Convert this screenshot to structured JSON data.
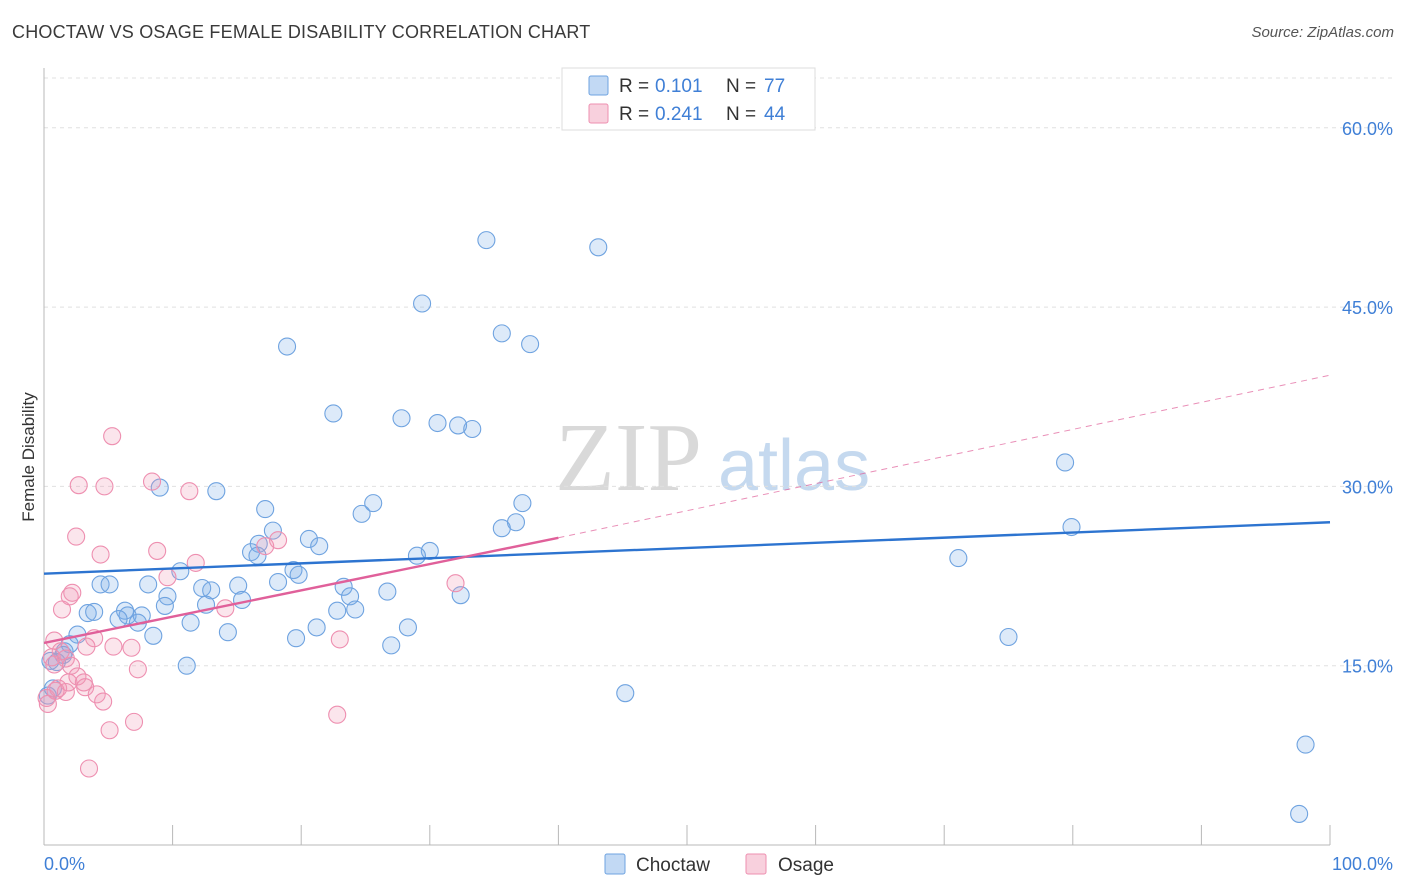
{
  "title": "CHOCTAW VS OSAGE FEMALE DISABILITY CORRELATION CHART",
  "source": "Source: ZipAtlas.com",
  "watermark": {
    "zip": "ZIP",
    "atlas": "atlas"
  },
  "colors": {
    "choctaw": "#6fa3e0",
    "choctaw_fill": "rgba(120,170,230,0.25)",
    "choctaw_line": "#2d74d0",
    "osage": "#ee8fb0",
    "osage_fill": "rgba(240,150,180,0.25)",
    "osage_line": "#e0609a",
    "tick_text": "#3f7fd6",
    "grid": "#e0e0e0"
  },
  "legend": {
    "rows": [
      {
        "series": "choctaw",
        "r_label": "R = ",
        "r_value": "0.101",
        "n_label": "N = ",
        "n_value": "77"
      },
      {
        "series": "osage",
        "r_label": "R = ",
        "r_value": "0.241",
        "n_label": "N = ",
        "n_value": "44"
      }
    ]
  },
  "chart_data": {
    "type": "scatter",
    "title": "CHOCTAW VS OSAGE FEMALE DISABILITY CORRELATION CHART",
    "xlabel": "",
    "ylabel": "Female Disability",
    "xlim": [
      0,
      100
    ],
    "ylim": [
      0,
      65
    ],
    "x_tick_labels": [
      "0.0%",
      "100.0%"
    ],
    "y_ticks": [
      15,
      30,
      45,
      60
    ],
    "y_tick_labels": [
      "15.0%",
      "30.0%",
      "45.0%",
      "60.0%"
    ],
    "grid": true,
    "series": [
      {
        "name": "Choctaw",
        "r": 0.101,
        "n": 77,
        "trend": {
          "x": [
            0,
            100
          ],
          "y": [
            22.7,
            27.0
          ],
          "style": "solid"
        },
        "points": [
          [
            34.4,
            50.6
          ],
          [
            43.1,
            50.0
          ],
          [
            29.4,
            45.3
          ],
          [
            35.6,
            42.8
          ],
          [
            37.8,
            41.9
          ],
          [
            18.9,
            41.7
          ],
          [
            22.5,
            36.1
          ],
          [
            27.8,
            35.7
          ],
          [
            30.6,
            35.3
          ],
          [
            32.2,
            35.1
          ],
          [
            33.3,
            34.8
          ],
          [
            79.4,
            32.0
          ],
          [
            9.0,
            29.9
          ],
          [
            13.4,
            29.6
          ],
          [
            25.6,
            28.6
          ],
          [
            37.2,
            28.6
          ],
          [
            17.2,
            28.1
          ],
          [
            24.7,
            27.7
          ],
          [
            36.7,
            27.0
          ],
          [
            35.6,
            26.5
          ],
          [
            79.9,
            26.6
          ],
          [
            17.8,
            26.3
          ],
          [
            20.6,
            25.6
          ],
          [
            16.7,
            25.2
          ],
          [
            21.4,
            25.0
          ],
          [
            16.1,
            24.5
          ],
          [
            16.6,
            24.2
          ],
          [
            30.0,
            24.6
          ],
          [
            29.0,
            24.2
          ],
          [
            71.1,
            24.0
          ],
          [
            10.6,
            22.9
          ],
          [
            19.4,
            23.0
          ],
          [
            19.8,
            22.6
          ],
          [
            4.4,
            21.8
          ],
          [
            5.1,
            21.8
          ],
          [
            8.1,
            21.8
          ],
          [
            18.2,
            22.0
          ],
          [
            12.3,
            21.5
          ],
          [
            15.1,
            21.7
          ],
          [
            23.3,
            21.6
          ],
          [
            13.0,
            21.3
          ],
          [
            26.7,
            21.2
          ],
          [
            9.6,
            20.8
          ],
          [
            23.8,
            20.8
          ],
          [
            32.4,
            20.9
          ],
          [
            15.4,
            20.5
          ],
          [
            12.6,
            20.1
          ],
          [
            9.4,
            20.0
          ],
          [
            3.4,
            19.4
          ],
          [
            3.9,
            19.5
          ],
          [
            6.3,
            19.6
          ],
          [
            6.5,
            19.2
          ],
          [
            7.6,
            19.2
          ],
          [
            22.8,
            19.6
          ],
          [
            24.2,
            19.7
          ],
          [
            5.8,
            18.9
          ],
          [
            7.3,
            18.6
          ],
          [
            11.4,
            18.6
          ],
          [
            21.2,
            18.2
          ],
          [
            28.3,
            18.2
          ],
          [
            14.3,
            17.8
          ],
          [
            2.6,
            17.6
          ],
          [
            8.5,
            17.5
          ],
          [
            19.6,
            17.3
          ],
          [
            75.0,
            17.4
          ],
          [
            27.0,
            16.7
          ],
          [
            2.0,
            16.8
          ],
          [
            1.6,
            16.2
          ],
          [
            1.5,
            15.9
          ],
          [
            1.0,
            15.3
          ],
          [
            11.1,
            15.0
          ],
          [
            45.2,
            12.7
          ],
          [
            0.3,
            12.5
          ],
          [
            0.7,
            13.1
          ],
          [
            98.1,
            8.4
          ],
          [
            97.6,
            2.6
          ],
          [
            0.5,
            15.4
          ]
        ]
      },
      {
        "name": "Osage",
        "r": 0.241,
        "n": 44,
        "trend": {
          "x": [
            0,
            40,
            100
          ],
          "y": [
            16.9,
            25.7,
            39.3
          ],
          "style": "solid-then-dashed",
          "solid_until": 40
        },
        "points": [
          [
            5.3,
            34.2
          ],
          [
            8.4,
            30.4
          ],
          [
            2.7,
            30.1
          ],
          [
            4.7,
            30.0
          ],
          [
            11.3,
            29.6
          ],
          [
            2.5,
            25.8
          ],
          [
            18.2,
            25.5
          ],
          [
            17.2,
            25.0
          ],
          [
            8.8,
            24.6
          ],
          [
            4.4,
            24.3
          ],
          [
            11.8,
            23.6
          ],
          [
            9.6,
            22.4
          ],
          [
            32.0,
            21.9
          ],
          [
            2.2,
            21.1
          ],
          [
            2.0,
            20.8
          ],
          [
            1.4,
            19.7
          ],
          [
            14.1,
            19.8
          ],
          [
            0.8,
            17.1
          ],
          [
            3.9,
            17.3
          ],
          [
            23.0,
            17.2
          ],
          [
            3.3,
            16.6
          ],
          [
            1.3,
            16.2
          ],
          [
            5.4,
            16.6
          ],
          [
            6.8,
            16.5
          ],
          [
            0.6,
            15.7
          ],
          [
            1.7,
            15.6
          ],
          [
            7.3,
            14.7
          ],
          [
            0.8,
            15.1
          ],
          [
            2.1,
            15.0
          ],
          [
            2.6,
            14.1
          ],
          [
            1.9,
            13.6
          ],
          [
            3.1,
            13.6
          ],
          [
            3.2,
            13.2
          ],
          [
            1.1,
            13.1
          ],
          [
            1.7,
            12.8
          ],
          [
            4.1,
            12.6
          ],
          [
            0.2,
            12.3
          ],
          [
            4.6,
            12.0
          ],
          [
            0.3,
            11.8
          ],
          [
            22.8,
            10.9
          ],
          [
            7.0,
            10.3
          ],
          [
            5.1,
            9.6
          ],
          [
            3.5,
            6.4
          ],
          [
            0.9,
            12.9
          ]
        ]
      }
    ],
    "legend_entries": [
      "Choctaw",
      "Osage"
    ]
  }
}
